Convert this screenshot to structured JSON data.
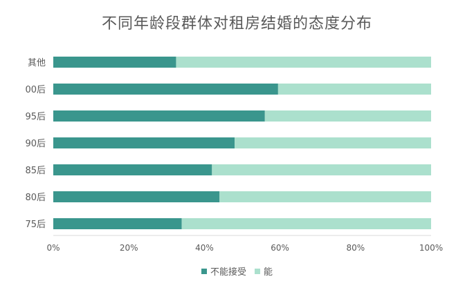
{
  "chart_data": {
    "type": "bar",
    "orientation": "horizontal",
    "stacked": "percent",
    "title": "不同年龄段群体对租房结婚的态度分布",
    "categories": [
      "其他",
      "00后",
      "95后",
      "90后",
      "85后",
      "80后",
      "75后"
    ],
    "series": [
      {
        "name": "不能接受",
        "color": "#3a968d",
        "values": [
          32.5,
          59.5,
          56,
          48,
          42,
          44,
          34
        ]
      },
      {
        "name": "能",
        "color": "#abe0cd",
        "values": [
          67.5,
          40.5,
          44,
          52,
          58,
          56,
          66
        ]
      }
    ],
    "x_ticks": [
      "0%",
      "20%",
      "40%",
      "60%",
      "80%",
      "100%"
    ],
    "xlim": [
      0,
      100
    ],
    "grid": false,
    "legend_position": "bottom"
  }
}
